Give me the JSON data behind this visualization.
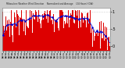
{
  "background_color": "#c8c8c8",
  "plot_bg_color": "#ffffff",
  "grid_color": "#aaaaaa",
  "bar_color": "#dd0000",
  "line_color": "#0000cc",
  "dot_color": "#0000cc",
  "ylim": [
    -0.15,
    1.1
  ],
  "ytick_positions": [
    0.0,
    0.5,
    1.0
  ],
  "ytick_labels": [
    "0",
    ".5",
    "1"
  ],
  "n_points": 288,
  "seed": 7
}
